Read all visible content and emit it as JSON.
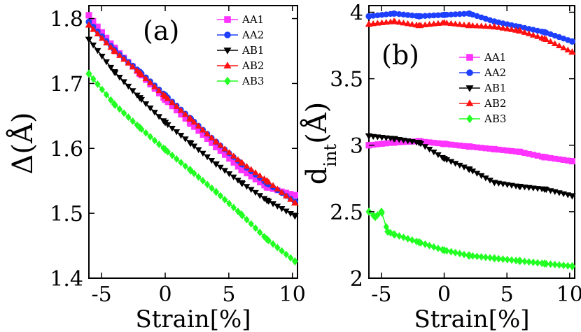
{
  "chart_data": [
    {
      "type": "line",
      "panel_label": "(a)",
      "xlabel": "Strain[%]",
      "ylabel": "Δ(Å)",
      "xlim": [
        -6,
        10.4
      ],
      "ylim": [
        1.4,
        1.82
      ],
      "xticks": [
        -5,
        0,
        5,
        10
      ],
      "yticks": [
        1.4,
        1.5,
        1.6,
        1.7,
        1.8
      ],
      "xtick_labels": [
        "-5",
        "0",
        "5",
        "10"
      ],
      "ytick_labels": [
        "1.4",
        "1.5",
        "1.6",
        "1.7",
        "1.8"
      ],
      "grid": false,
      "legend_position": "top-right",
      "series": [
        {
          "name": "AA1",
          "color": "#ff33ff",
          "marker": "square",
          "x": [
            -6,
            -4,
            -2,
            0,
            2,
            4,
            6,
            8,
            10.2
          ],
          "y": [
            1.805,
            1.755,
            1.715,
            1.675,
            1.638,
            1.602,
            1.567,
            1.54,
            1.528
          ]
        },
        {
          "name": "AA2",
          "color": "#1f3fff",
          "marker": "circle",
          "x": [
            -6,
            -4,
            -2,
            0,
            2,
            4,
            6,
            8,
            10.2
          ],
          "y": [
            1.795,
            1.752,
            1.718,
            1.682,
            1.646,
            1.61,
            1.576,
            1.546,
            1.518
          ]
        },
        {
          "name": "AB1",
          "color": "#000000",
          "marker": "triangle-down",
          "x": [
            -6,
            -4,
            -2,
            0,
            2,
            4,
            6,
            8,
            10.2
          ],
          "y": [
            1.768,
            1.718,
            1.678,
            1.64,
            1.608,
            1.576,
            1.547,
            1.52,
            1.496
          ]
        },
        {
          "name": "AB2",
          "color": "#ff1111",
          "marker": "triangle-up",
          "x": [
            -6,
            -4,
            -2,
            0,
            2,
            4,
            6,
            8,
            10.2
          ],
          "y": [
            1.79,
            1.75,
            1.716,
            1.68,
            1.645,
            1.61,
            1.578,
            1.55,
            1.516
          ]
        },
        {
          "name": "AB3",
          "color": "#22ff22",
          "marker": "diamond",
          "x": [
            -6,
            -4,
            -2,
            0,
            2,
            4,
            6,
            8,
            10.2
          ],
          "y": [
            1.715,
            1.668,
            1.632,
            1.598,
            1.566,
            1.533,
            1.498,
            1.46,
            1.426
          ]
        }
      ]
    },
    {
      "type": "line",
      "panel_label": "(b)",
      "xlabel": "Strain[%]",
      "ylabel": "d_int(Å)",
      "ylabel_main": "d",
      "ylabel_sub": "int",
      "ylabel_rest": "(Å)",
      "xlim": [
        -6,
        10.4
      ],
      "ylim": [
        2.0,
        4.05
      ],
      "xticks": [
        -5,
        0,
        5,
        10
      ],
      "yticks": [
        2,
        2.5,
        3,
        3.5,
        4
      ],
      "xtick_labels": [
        "-5",
        "0",
        "5",
        "10"
      ],
      "ytick_labels": [
        "2",
        "2.5",
        "3",
        "3.5",
        "4"
      ],
      "grid": false,
      "legend_position": "upper-right",
      "series": [
        {
          "name": "AA1",
          "color": "#ff33ff",
          "marker": "square",
          "x": [
            -6,
            -4,
            -2,
            0,
            2,
            4,
            6,
            8,
            10.2
          ],
          "y": [
            3.0,
            3.02,
            3.03,
            3.01,
            2.99,
            2.97,
            2.95,
            2.91,
            2.88
          ]
        },
        {
          "name": "AA2",
          "color": "#1f3fff",
          "marker": "circle",
          "x": [
            -6,
            -4,
            -2,
            0,
            2,
            4,
            6,
            8,
            10.2
          ],
          "y": [
            3.97,
            3.99,
            3.97,
            3.98,
            3.99,
            3.93,
            3.89,
            3.85,
            3.78
          ]
        },
        {
          "name": "AB1",
          "color": "#000000",
          "marker": "triangle-down",
          "x": [
            -6,
            -4,
            -2,
            0,
            2,
            4,
            6,
            8,
            10.2
          ],
          "y": [
            3.07,
            3.05,
            3.02,
            2.9,
            2.82,
            2.72,
            2.69,
            2.67,
            2.62
          ]
        },
        {
          "name": "AB2",
          "color": "#ff1111",
          "marker": "triangle-up",
          "x": [
            -6,
            -4,
            -2,
            0,
            2,
            4,
            6,
            8,
            10.2
          ],
          "y": [
            3.91,
            3.93,
            3.9,
            3.92,
            3.9,
            3.89,
            3.86,
            3.8,
            3.7
          ]
        },
        {
          "name": "AB3",
          "color": "#22ff22",
          "marker": "diamond",
          "x": [
            -6,
            -5.5,
            -5,
            -4.5,
            -4,
            -2,
            0,
            2,
            4,
            6,
            8,
            10.2
          ],
          "y": [
            2.5,
            2.46,
            2.5,
            2.35,
            2.33,
            2.27,
            2.21,
            2.17,
            2.15,
            2.13,
            2.11,
            2.09
          ]
        }
      ]
    }
  ]
}
